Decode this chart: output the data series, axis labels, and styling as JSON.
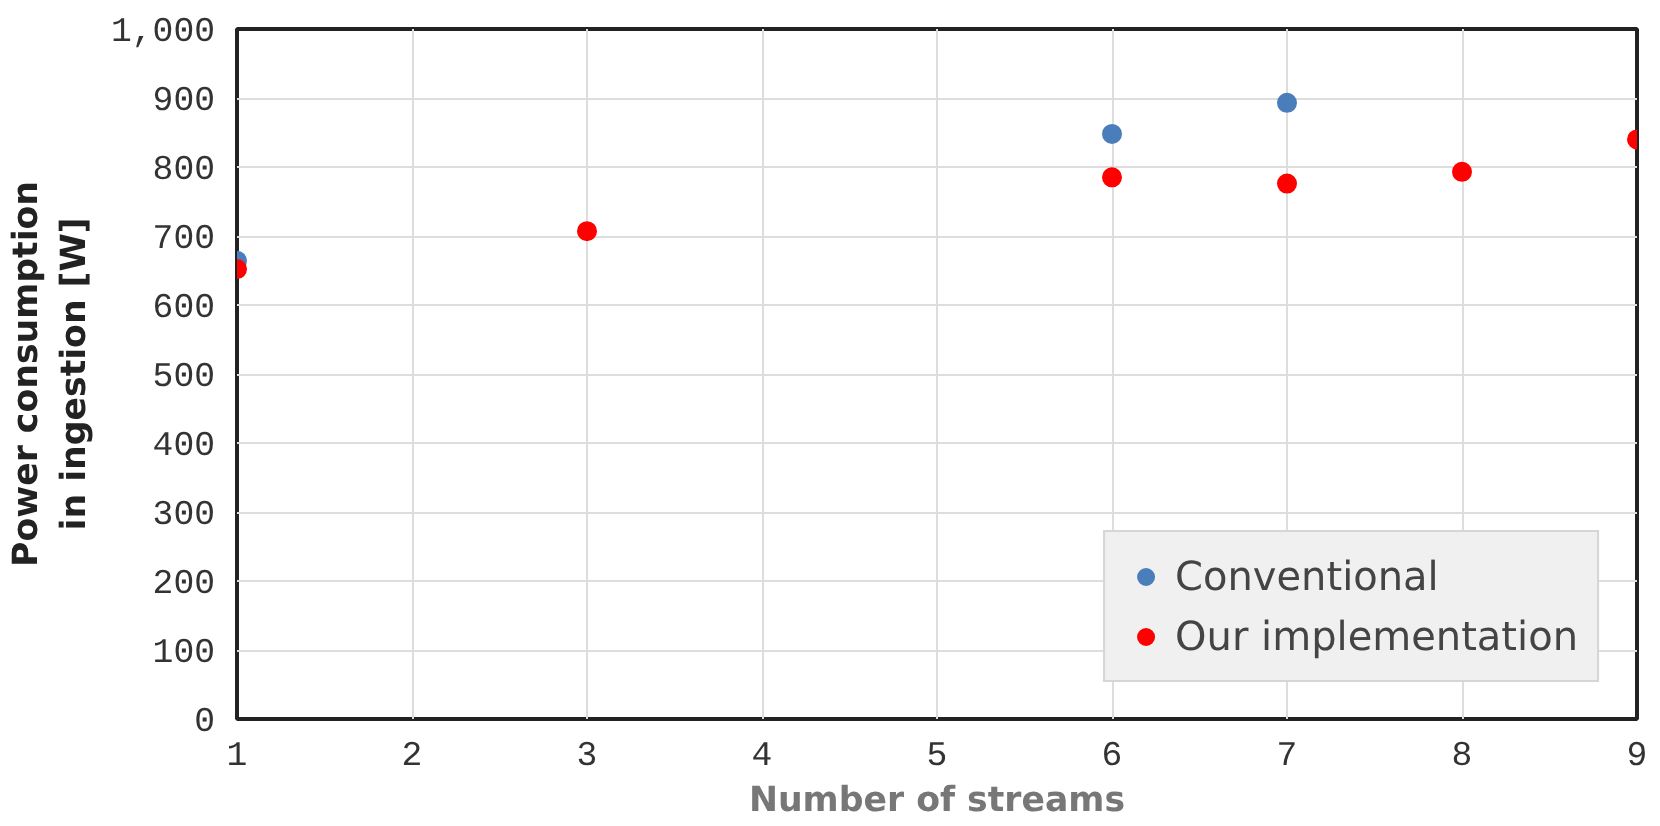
{
  "chart_data": {
    "type": "scatter",
    "xlabel": "Number of streams",
    "ylabel": "Power consumption\nin ingestion [W]",
    "x": [
      1,
      3,
      6,
      7,
      8,
      9
    ],
    "xlim": [
      1,
      9
    ],
    "xticks": [
      1,
      2,
      3,
      4,
      5,
      6,
      7,
      8,
      9
    ],
    "ylim": [
      0,
      1000
    ],
    "yticks": [
      0,
      100,
      200,
      300,
      400,
      500,
      600,
      700,
      800,
      900,
      {
        "value": 1000,
        "label": "1,000"
      }
    ],
    "series": [
      {
        "name": "Conventional",
        "color": "#4a7ebb",
        "values": [
          664,
          null,
          848,
          893,
          null,
          null
        ]
      },
      {
        "name": "Our implementation",
        "color": "#ff0000",
        "values": [
          652,
          707,
          785,
          776,
          793,
          840
        ]
      }
    ],
    "grid": true,
    "legend": "bottom right",
    "marker": "circle"
  }
}
